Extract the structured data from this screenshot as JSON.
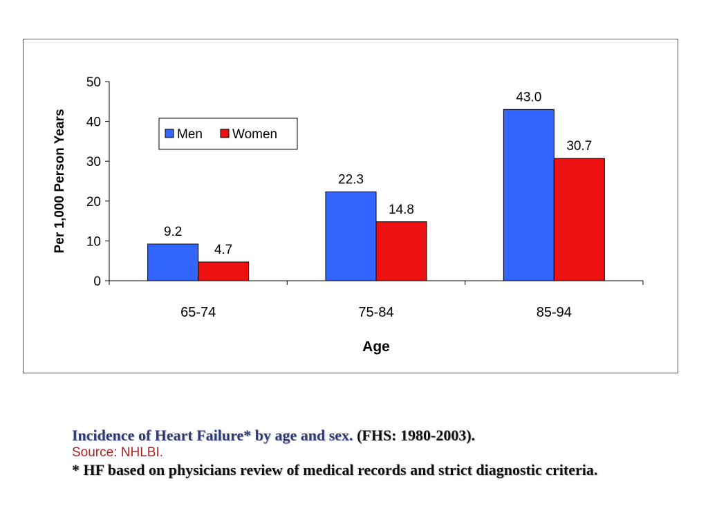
{
  "chart_data": {
    "type": "bar",
    "categories": [
      "65-74",
      "75-84",
      "85-94"
    ],
    "series": [
      {
        "name": "Men",
        "values": [
          9.2,
          22.3,
          43.0
        ],
        "labels": [
          "9.2",
          "22.3",
          "43.0"
        ],
        "color": "#3366ff"
      },
      {
        "name": "Women",
        "values": [
          4.7,
          14.8,
          30.7
        ],
        "labels": [
          "4.7",
          "14.8",
          "30.7"
        ],
        "color": "#ee1111"
      }
    ],
    "xlabel": "Age",
    "ylabel": "Per 1,000 Person Years",
    "ylim": [
      0,
      50
    ],
    "yticks": [
      "0",
      "10",
      "20",
      "30",
      "40",
      "50"
    ],
    "grid": false,
    "legend_position": "top-left"
  },
  "caption": {
    "title": "Incidence of Heart Failure* by age and sex.",
    "period": "(FHS: 1980-2003).",
    "source": "Source: NHLBI.",
    "note": "* HF based on physicians review of medical records and strict diagnostic criteria."
  }
}
